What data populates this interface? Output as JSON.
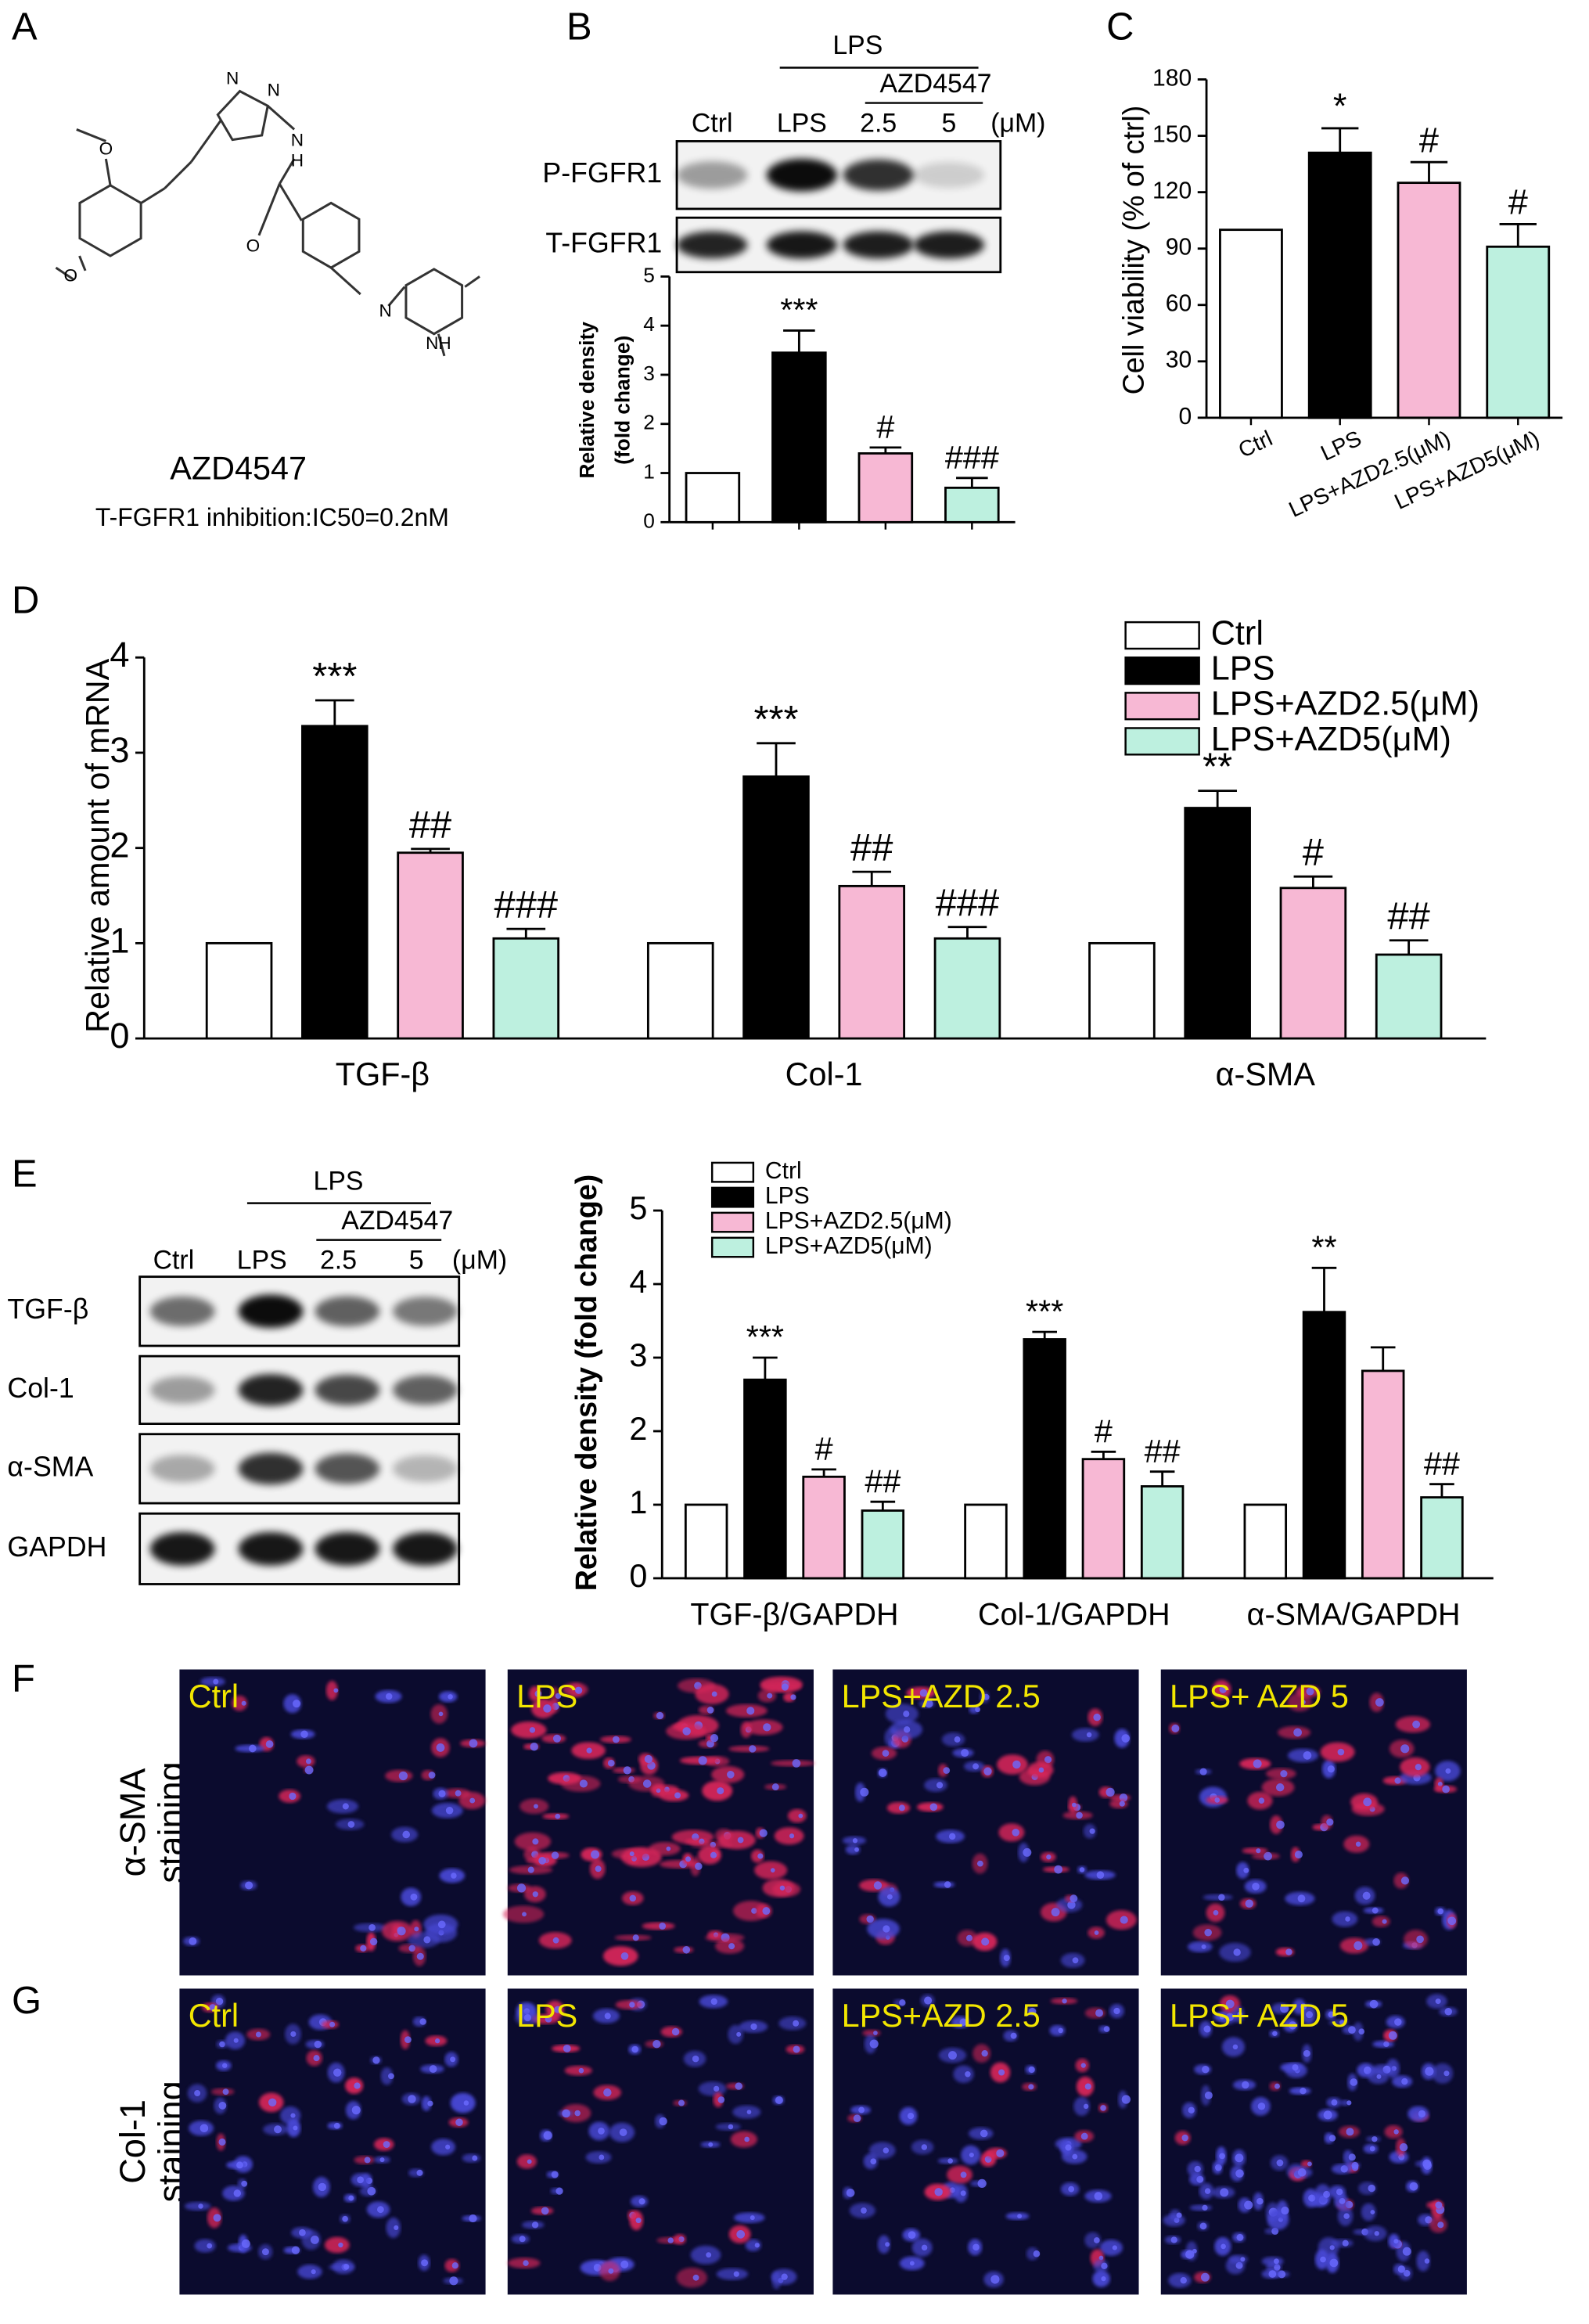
{
  "panel_labels": [
    "A",
    "B",
    "C",
    "D",
    "E",
    "F",
    "G"
  ],
  "structure": {
    "name": "AZD4547",
    "note": "T-FGFR1 inhibition:IC50=0.2nM",
    "atoms": [
      "O",
      "O",
      "N",
      "N",
      "N",
      "H",
      "O",
      "N",
      "NH"
    ]
  },
  "blot_b": {
    "group": "LPS",
    "drug": "AZD4547",
    "lanes": [
      "Ctrl",
      "LPS",
      "2.5",
      "5"
    ],
    "unit": "(μM)",
    "rows": [
      "P-FGFR1",
      "T-FGFR1"
    ]
  },
  "blot_e": {
    "group": "LPS",
    "drug": "AZD4547",
    "lanes": [
      "Ctrl",
      "LPS",
      "2.5",
      "5"
    ],
    "unit": "(μM)",
    "rows": [
      "TGF-β",
      "Col-1",
      "α-SMA",
      "GAPDH"
    ]
  },
  "staining": {
    "rows": [
      [
        "α-SMA",
        "staining"
      ],
      [
        "Col-1",
        "staining"
      ]
    ],
    "columns": [
      "Ctrl",
      "LPS",
      "LPS+AZD 2.5",
      "LPS+ AZD 5"
    ]
  },
  "chart_data": [
    {
      "type": "bar",
      "ylabel": [
        "Relative density",
        "(fold change)"
      ],
      "categories": [
        null,
        null,
        null,
        null
      ],
      "values": [
        1,
        3.45,
        1.4,
        0.7
      ],
      "errors": [
        null,
        0.45,
        0.12,
        0.2
      ],
      "colors": [
        "#ffffff",
        "#000000",
        "#f7b8d4",
        "#bdf0df"
      ],
      "annotations": [
        null,
        "***",
        "#",
        "###"
      ],
      "ylim": [
        0,
        5
      ],
      "yticks": [
        0,
        1,
        2,
        3,
        4,
        5
      ]
    },
    {
      "type": "bar",
      "ylabel": "Cell viability  (% of ctrl)",
      "categories": [
        "Ctrl",
        "LPS",
        "LPS+AZD2.5(μM)",
        "LPS+AZD5(μM)"
      ],
      "values": [
        100,
        141,
        125,
        91
      ],
      "errors": [
        null,
        13,
        11,
        12
      ],
      "colors": [
        "#ffffff",
        "#000000",
        "#f7b8d4",
        "#bdf0df"
      ],
      "annotations": [
        null,
        "*",
        "#",
        "#"
      ],
      "ylim": [
        0,
        180
      ],
      "yticks": [
        0,
        30,
        60,
        90,
        120,
        150,
        180
      ]
    },
    {
      "type": "grouped-bar",
      "ylabel": "Relative amount of mRNA",
      "categories": [
        "TGF-β",
        "Col-1",
        "α-SMA"
      ],
      "series": [
        {
          "name": "Ctrl",
          "color": "#ffffff",
          "values": [
            1,
            1,
            1
          ],
          "errors": [
            null,
            null,
            null
          ],
          "annotations": [
            null,
            null,
            null
          ]
        },
        {
          "name": "LPS",
          "color": "#000000",
          "values": [
            3.28,
            2.75,
            2.42
          ],
          "errors": [
            0.27,
            0.35,
            0.18
          ],
          "annotations": [
            "***",
            "***",
            "**"
          ]
        },
        {
          "name": "LPS+AZD2.5(μM)",
          "color": "#f7b8d4",
          "values": [
            1.95,
            1.6,
            1.58
          ],
          "errors": [
            0.04,
            0.15,
            0.12
          ],
          "annotations": [
            "##",
            "##",
            "#"
          ]
        },
        {
          "name": "LPS+AZD5(μM)",
          "color": "#bdf0df",
          "values": [
            1.05,
            1.05,
            0.88
          ],
          "errors": [
            0.1,
            0.12,
            0.15
          ],
          "annotations": [
            "###",
            "###",
            "##"
          ]
        }
      ],
      "ylim": [
        0,
        4
      ],
      "yticks": [
        0,
        1,
        2,
        3,
        4
      ]
    },
    {
      "type": "grouped-bar",
      "ylabel": "Relative density  (fold change)",
      "categories": [
        "TGF-β/GAPDH",
        "Col-1/GAPDH",
        "α-SMA/GAPDH"
      ],
      "series": [
        {
          "name": "Ctrl",
          "color": "#ffffff",
          "values": [
            1,
            1,
            1
          ],
          "errors": [
            null,
            null,
            null
          ],
          "annotations": [
            null,
            null,
            null
          ]
        },
        {
          "name": "LPS",
          "color": "#000000",
          "values": [
            2.7,
            3.25,
            3.62
          ],
          "errors": [
            0.3,
            0.1,
            0.6
          ],
          "annotations": [
            "***",
            "***",
            "**"
          ]
        },
        {
          "name": "LPS+AZD2.5(μM)",
          "color": "#f7b8d4",
          "values": [
            1.38,
            1.62,
            2.82
          ],
          "errors": [
            0.1,
            0.1,
            0.32
          ],
          "annotations": [
            "#",
            "#",
            null
          ]
        },
        {
          "name": "LPS+AZD5(μM)",
          "color": "#bdf0df",
          "values": [
            0.92,
            1.25,
            1.1
          ],
          "errors": [
            0.12,
            0.2,
            0.18
          ],
          "annotations": [
            "##",
            "##",
            "##"
          ]
        }
      ],
      "ylim": [
        0,
        5
      ],
      "yticks": [
        0,
        1,
        2,
        3,
        4,
        5
      ]
    }
  ]
}
